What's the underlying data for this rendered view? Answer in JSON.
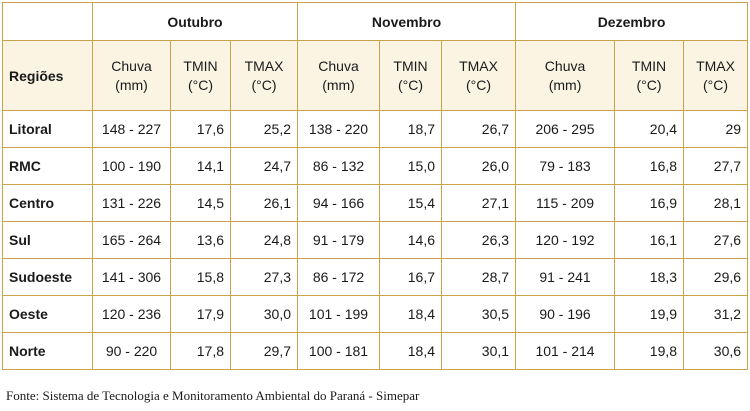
{
  "table": {
    "months": [
      "Outubro",
      "Novembro",
      "Dezembro"
    ],
    "region_header": "Regiões",
    "sub_headers": [
      {
        "line1": "Chuva",
        "line2": "(mm)"
      },
      {
        "line1": "TMIN",
        "line2": "(°C)"
      },
      {
        "line1": "TMAX",
        "line2": "(°C)"
      },
      {
        "line1": "Chuva",
        "line2": "(mm)"
      },
      {
        "line1": "TMIN",
        "line2": "(°C)"
      },
      {
        "line1": "TMAX",
        "line2": "(°C)"
      },
      {
        "line1": "Chuva",
        "line2": "(mm)"
      },
      {
        "line1": "TMIN",
        "line2": "(°C)"
      },
      {
        "line1": "TMAX",
        "line2": "(°C)"
      }
    ],
    "rows": [
      {
        "region": "Litoral",
        "cells": [
          "148 - 227",
          "17,6",
          "25,2",
          "138 - 220",
          "18,7",
          "26,7",
          "206 - 295",
          "20,4",
          "29"
        ]
      },
      {
        "region": "RMC",
        "cells": [
          "100 - 190",
          "14,1",
          "24,7",
          "86 - 132",
          "15,0",
          "26,0",
          "79 - 183",
          "16,8",
          "27,7"
        ]
      },
      {
        "region": "Centro",
        "cells": [
          "131 - 226",
          "14,5",
          "26,1",
          "94 - 166",
          "15,4",
          "27,1",
          "115 - 209",
          "16,9",
          "28,1"
        ]
      },
      {
        "region": "Sul",
        "cells": [
          "165 - 264",
          "13,6",
          "24,8",
          "91 - 179",
          "14,6",
          "26,3",
          "120 - 192",
          "16,1",
          "27,6"
        ]
      },
      {
        "region": "Sudoeste",
        "cells": [
          "141 - 306",
          "15,8",
          "27,3",
          "86 - 172",
          "16,7",
          "28,7",
          "91 - 241",
          "18,3",
          "29,6"
        ]
      },
      {
        "region": "Oeste",
        "cells": [
          "120 - 236",
          "17,9",
          "30,0",
          "101 - 199",
          "18,4",
          "30,5",
          "90 - 196",
          "19,9",
          "31,2"
        ]
      },
      {
        "region": "Norte",
        "cells": [
          "90 - 220",
          "17,8",
          "29,7",
          "100 - 181",
          "18,4",
          "30,1",
          "101 - 214",
          "19,8",
          "30,6"
        ]
      }
    ]
  },
  "caption": "Fonte: Sistema de Tecnologia e Monitoramento Ambiental do Paraná - Simepar",
  "colors": {
    "border": "#c9a24a",
    "header_bg": "#fbf4e3"
  }
}
